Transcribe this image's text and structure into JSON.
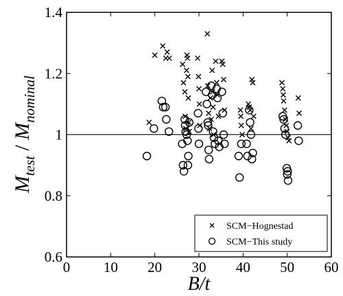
{
  "chart_data": {
    "type": "scatter",
    "title": "",
    "xlabel": {
      "main": "B",
      "rest": "/t"
    },
    "ylabel": {
      "m1": "M",
      "s1": "test",
      "mid": " / ",
      "m2": "M",
      "s2": "nominal"
    },
    "xlim": [
      0,
      60
    ],
    "ylim": [
      0.6,
      1.4
    ],
    "xticks": [
      0,
      10,
      20,
      30,
      40,
      50,
      60
    ],
    "yticks": [
      0.6,
      0.8,
      1.0,
      1.2,
      1.4
    ],
    "xtick_labels": [
      "0",
      "10",
      "20",
      "30",
      "40",
      "50",
      "60"
    ],
    "ytick_labels": [
      "0.6",
      "0.8",
      "1",
      "1.2",
      "1.4"
    ],
    "reference_line": 1.0,
    "grid": false,
    "legend_position": "bottom-right",
    "series": [
      {
        "name": "SCM−Hognestad",
        "marker": "x",
        "points": [
          [
            18.7,
            1.04
          ],
          [
            20.0,
            1.26
          ],
          [
            21.8,
            1.29
          ],
          [
            22.5,
            1.25
          ],
          [
            22.8,
            1.27
          ],
          [
            23.3,
            1.25
          ],
          [
            26.3,
            1.23
          ],
          [
            26.5,
            1.17
          ],
          [
            26.8,
            1.14
          ],
          [
            26.9,
            1.06
          ],
          [
            27.0,
            1.02
          ],
          [
            27.2,
            1.21
          ],
          [
            27.3,
            1.26
          ],
          [
            27.4,
            1.25
          ],
          [
            27.5,
            1.19
          ],
          [
            27.6,
            1.12
          ],
          [
            27.7,
            1.04
          ],
          [
            27.8,
            1.01
          ],
          [
            29.7,
            1.25
          ],
          [
            29.9,
            1.19
          ],
          [
            30.0,
            1.15
          ],
          [
            30.1,
            1.1
          ],
          [
            30.2,
            1.03
          ],
          [
            31.9,
            1.33
          ],
          [
            32.0,
            1.16
          ],
          [
            32.2,
            1.07
          ],
          [
            32.4,
            1.02
          ],
          [
            32.6,
            1.12
          ],
          [
            32.8,
            1.05
          ],
          [
            33.0,
            1.21
          ],
          [
            33.1,
            1.14
          ],
          [
            33.2,
            1.09
          ],
          [
            33.3,
            1.0
          ],
          [
            33.8,
            1.24
          ],
          [
            34.0,
            1.17
          ],
          [
            34.2,
            1.13
          ],
          [
            34.4,
            1.06
          ],
          [
            35.2,
            1.24
          ],
          [
            35.4,
            1.23
          ],
          [
            35.6,
            1.18
          ],
          [
            35.8,
            1.08
          ],
          [
            39.4,
            1.08
          ],
          [
            39.5,
            1.06
          ],
          [
            39.6,
            1.03
          ],
          [
            39.8,
            1.0
          ],
          [
            41.2,
            1.1
          ],
          [
            41.4,
            1.09
          ],
          [
            41.6,
            1.08
          ],
          [
            41.8,
            1.02
          ],
          [
            42.0,
            1.18
          ],
          [
            42.2,
            1.17
          ],
          [
            42.4,
            1.06
          ],
          [
            48.8,
            1.17
          ],
          [
            49.0,
            1.15
          ],
          [
            49.1,
            1.13
          ],
          [
            49.2,
            1.11
          ],
          [
            49.4,
            1.08
          ],
          [
            49.6,
            1.05
          ],
          [
            49.8,
            1.03
          ],
          [
            50.0,
            1.01
          ],
          [
            50.2,
            0.99
          ],
          [
            50.4,
            0.98
          ],
          [
            52.5,
            1.12
          ],
          [
            52.7,
            1.07
          ]
        ]
      },
      {
        "name": "SCM−This study",
        "marker": "o",
        "points": [
          [
            18.2,
            0.93
          ],
          [
            19.8,
            1.02
          ],
          [
            21.6,
            1.11
          ],
          [
            21.9,
            1.09
          ],
          [
            22.4,
            1.09
          ],
          [
            22.6,
            1.05
          ],
          [
            23.2,
            1.01
          ],
          [
            26.2,
            0.97
          ],
          [
            26.4,
            0.9
          ],
          [
            26.6,
            0.88
          ],
          [
            26.8,
            1.05
          ],
          [
            26.9,
            1.03
          ],
          [
            27.0,
            1.01
          ],
          [
            27.2,
            1.0
          ],
          [
            27.4,
            0.98
          ],
          [
            27.5,
            0.9
          ],
          [
            27.6,
            0.93
          ],
          [
            27.8,
            1.04
          ],
          [
            29.8,
            1.07
          ],
          [
            29.9,
            1.02
          ],
          [
            30.0,
            0.97
          ],
          [
            31.6,
            1.14
          ],
          [
            31.8,
            1.1
          ],
          [
            32.0,
            1.04
          ],
          [
            32.1,
            1.03
          ],
          [
            32.2,
            0.95
          ],
          [
            32.3,
            0.92
          ],
          [
            32.8,
            1.16
          ],
          [
            33.0,
            1.13
          ],
          [
            33.2,
            1.01
          ],
          [
            33.4,
            0.99
          ],
          [
            33.6,
            0.97
          ],
          [
            34.0,
            1.15
          ],
          [
            34.2,
            1.12
          ],
          [
            34.4,
            0.98
          ],
          [
            34.6,
            0.96
          ],
          [
            35.2,
            1.14
          ],
          [
            35.4,
            1.07
          ],
          [
            35.6,
            1.0
          ],
          [
            35.8,
            0.97
          ],
          [
            39.0,
            0.93
          ],
          [
            39.2,
            0.86
          ],
          [
            39.6,
            0.97
          ],
          [
            40.8,
            0.97
          ],
          [
            41.0,
            0.93
          ],
          [
            41.4,
            1.08
          ],
          [
            41.6,
            1.04
          ],
          [
            41.8,
            1.0
          ],
          [
            42.0,
            0.92
          ],
          [
            42.2,
            0.94
          ],
          [
            49.0,
            1.06
          ],
          [
            49.2,
            1.05
          ],
          [
            49.4,
            1.02
          ],
          [
            49.6,
            1.0
          ],
          [
            49.9,
            0.89
          ],
          [
            50.0,
            0.87
          ],
          [
            50.2,
            0.85
          ],
          [
            50.1,
            0.88
          ],
          [
            52.4,
            1.03
          ],
          [
            52.6,
            0.98
          ]
        ]
      }
    ]
  }
}
